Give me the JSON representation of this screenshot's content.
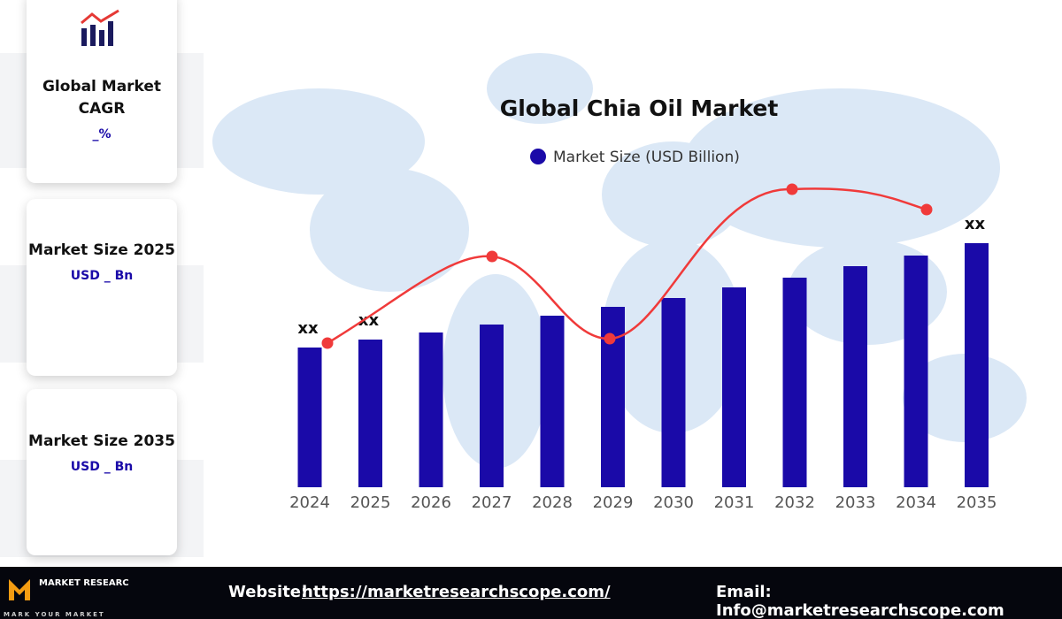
{
  "sidebar": {
    "cards": [
      {
        "title": "Global Market CAGR",
        "value": "_%"
      },
      {
        "title": "Market Size 2025",
        "value": "USD _ Bn"
      },
      {
        "title": "Market Size 2035",
        "value": "USD _ Bn"
      }
    ]
  },
  "footer": {
    "logo": "MARKET RESEARCH SCOPE",
    "tagline": "MARK YOUR MARKET",
    "website_label": "Website:",
    "website": "https://marketresearchscope.com/",
    "email": "Email: Info@marketresearchscope.com"
  },
  "chart_data": {
    "type": "bar",
    "title": "Global Chia Oil Market",
    "categories": [
      "2024",
      "2025",
      "2026",
      "2027",
      "2028",
      "2029",
      "2030",
      "2031",
      "2032",
      "2033",
      "2034",
      "2035"
    ],
    "series": [
      {
        "name": "Market Size (USD Billion)",
        "color": "#1a0aa8",
        "values": [
          158,
          167,
          175,
          184,
          194,
          204,
          214,
          226,
          237,
          250,
          262,
          276
        ],
        "value_labels": [
          "xx",
          "xx",
          null,
          null,
          null,
          null,
          null,
          null,
          null,
          null,
          null,
          "xx"
        ]
      }
    ],
    "ylim": [
      0,
      276
    ]
  }
}
